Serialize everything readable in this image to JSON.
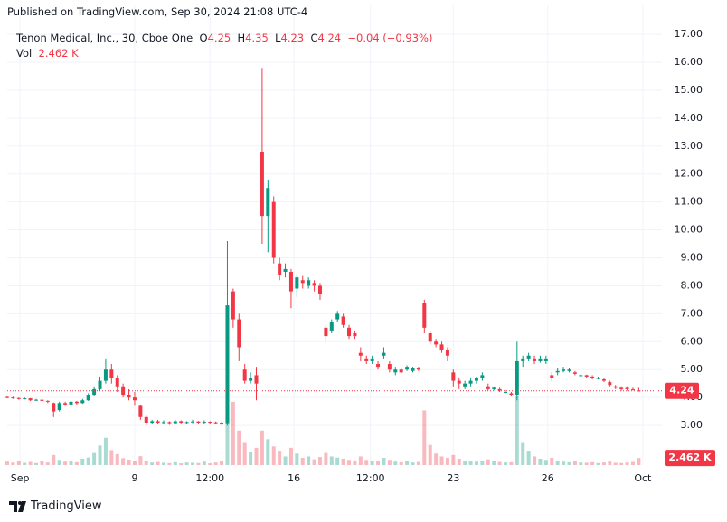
{
  "published": "Published on TradingView.com, Sep 30, 2024 21:08 UTC-4",
  "brand": "TradingView",
  "chart_data": {
    "type": "candlestick",
    "symbol": "Tenon Medical, Inc., 30, Cboe One",
    "legend_letters": [
      "O",
      "H",
      "L",
      "C"
    ],
    "change": {
      "value": -0.04,
      "label": "−0.04"
    },
    "change_pct": {
      "value": -0.93,
      "label": "(−0.93%)"
    },
    "up_color": "#089981",
    "down_color": "#f23645",
    "grid": true,
    "last_price_line": true,
    "xlim": [
      0,
      113
    ],
    "xticks": [
      {
        "value": 2.2,
        "label": "Sep"
      },
      {
        "value": 22,
        "label": "9"
      },
      {
        "value": 35,
        "label": "12:00"
      },
      {
        "value": 49.5,
        "label": "16"
      },
      {
        "value": 62.7,
        "label": "12:00"
      },
      {
        "value": 77,
        "label": "23"
      },
      {
        "value": 93.3,
        "label": "26"
      },
      {
        "value": 109.7,
        "label": "Oct"
      }
    ],
    "ylim": [
      1.58,
      18.07
    ],
    "yticks": [
      {
        "value": 3,
        "label": "3.00"
      },
      {
        "value": 4,
        "label": "4.00"
      },
      {
        "value": 5,
        "label": "5.00"
      },
      {
        "value": 6,
        "label": "6.00"
      },
      {
        "value": 7,
        "label": "7.00"
      },
      {
        "value": 8,
        "label": "8.00"
      },
      {
        "value": 9,
        "label": "9.00"
      },
      {
        "value": 10,
        "label": "10.00"
      },
      {
        "value": 11,
        "label": "11.00"
      },
      {
        "value": 12,
        "label": "12.00"
      },
      {
        "value": 13,
        "label": "13.00"
      },
      {
        "value": 14,
        "label": "14.00"
      },
      {
        "value": 15,
        "label": "15.00"
      },
      {
        "value": 16,
        "label": "16.00"
      },
      {
        "value": 17,
        "label": "17.00"
      }
    ],
    "open": [
      4.02,
      4.0,
      3.98,
      3.95,
      3.97,
      3.9,
      3.92,
      3.88,
      3.8,
      3.55,
      3.8,
      3.75,
      3.85,
      3.8,
      3.9,
      4.1,
      4.3,
      4.6,
      5.0,
      4.7,
      4.4,
      4.1,
      4.0,
      3.7,
      3.3,
      3.1,
      3.15,
      3.1,
      3.12,
      3.08,
      3.15,
      3.1,
      3.12,
      3.14,
      3.1,
      3.13,
      3.11,
      3.1,
      3.08,
      7.8,
      6.8,
      5.0,
      4.6,
      4.8,
      12.8,
      10.5,
      11.0,
      8.8,
      8.5,
      8.5,
      7.9,
      8.2,
      8.0,
      8.1,
      8.0,
      6.5,
      6.4,
      6.8,
      6.9,
      6.5,
      6.3,
      5.6,
      5.4,
      5.3,
      5.2,
      5.5,
      5.2,
      4.9,
      5.0,
      5.0,
      4.95,
      5.05,
      7.4,
      6.3,
      6.0,
      5.9,
      5.7,
      4.9,
      4.6,
      4.4,
      4.5,
      4.6,
      4.7,
      4.4,
      4.3,
      4.3,
      4.2,
      4.15,
      4.1,
      5.3,
      5.4,
      5.4,
      5.3,
      5.3,
      4.8,
      4.9,
      4.95,
      4.95,
      4.9,
      4.8,
      4.8,
      4.75,
      4.7,
      4.65,
      4.55,
      4.4,
      4.35,
      4.35,
      4.3,
      4.25
    ],
    "high": [
      4.05,
      4.03,
      4.0,
      4.0,
      3.98,
      3.95,
      3.93,
      3.9,
      3.82,
      3.85,
      3.85,
      3.9,
      3.88,
      3.95,
      4.15,
      4.4,
      4.75,
      5.4,
      5.2,
      4.8,
      4.5,
      4.3,
      4.2,
      3.75,
      3.35,
      3.2,
      3.2,
      3.18,
      3.15,
      3.2,
      3.18,
      3.15,
      3.2,
      3.16,
      3.18,
      3.15,
      3.14,
      3.12,
      9.6,
      7.9,
      7.0,
      5.2,
      4.9,
      5.1,
      15.8,
      11.8,
      11.2,
      9.0,
      8.8,
      8.6,
      8.4,
      8.35,
      8.3,
      8.2,
      8.1,
      6.6,
      6.8,
      7.1,
      7.0,
      6.6,
      6.4,
      5.8,
      5.5,
      5.5,
      5.3,
      5.8,
      5.3,
      5.1,
      5.05,
      5.15,
      5.1,
      5.1,
      7.5,
      6.4,
      6.1,
      6.0,
      5.8,
      5.0,
      4.7,
      4.6,
      4.7,
      4.75,
      4.9,
      4.5,
      4.4,
      4.35,
      4.25,
      4.2,
      6.0,
      5.5,
      5.6,
      5.5,
      5.5,
      5.5,
      4.9,
      5.05,
      5.1,
      5.05,
      4.95,
      4.85,
      4.82,
      4.8,
      4.75,
      4.7,
      4.6,
      4.45,
      4.4,
      4.4,
      4.35,
      4.35
    ],
    "low": [
      3.97,
      3.95,
      3.92,
      3.93,
      3.87,
      3.88,
      3.85,
      3.8,
      3.3,
      3.5,
      3.7,
      3.72,
      3.75,
      3.78,
      3.88,
      4.05,
      4.25,
      4.5,
      4.5,
      4.2,
      4.0,
      3.9,
      3.7,
      3.2,
      3.0,
      3.05,
      3.05,
      3.05,
      3.02,
      3.05,
      3.05,
      3.06,
      3.08,
      3.05,
      3.07,
      3.06,
      3.05,
      3.02,
      3.0,
      6.5,
      5.3,
      4.5,
      4.5,
      3.9,
      9.5,
      9.2,
      8.8,
      8.2,
      8.3,
      7.2,
      7.6,
      7.9,
      7.9,
      7.8,
      7.5,
      6.0,
      6.3,
      6.7,
      6.5,
      6.1,
      6.1,
      5.3,
      5.2,
      5.2,
      5.0,
      5.4,
      4.9,
      4.8,
      4.85,
      4.95,
      4.9,
      4.95,
      6.3,
      5.9,
      5.8,
      5.6,
      5.3,
      4.4,
      4.3,
      4.3,
      4.4,
      4.5,
      4.6,
      4.25,
      4.25,
      4.2,
      4.15,
      4.05,
      3.9,
      5.1,
      5.3,
      5.2,
      5.25,
      5.2,
      4.6,
      4.8,
      4.9,
      4.9,
      4.8,
      4.75,
      4.7,
      4.65,
      4.65,
      4.55,
      4.4,
      4.3,
      4.25,
      4.25,
      4.25,
      4.23
    ],
    "close": [
      4.0,
      3.98,
      3.95,
      3.97,
      3.9,
      3.92,
      3.88,
      3.85,
      3.5,
      3.8,
      3.75,
      3.85,
      3.8,
      3.9,
      4.1,
      4.3,
      4.6,
      5.0,
      4.7,
      4.4,
      4.1,
      4.0,
      3.9,
      3.3,
      3.1,
      3.15,
      3.1,
      3.12,
      3.08,
      3.15,
      3.1,
      3.12,
      3.14,
      3.1,
      3.13,
      3.11,
      3.1,
      3.08,
      7.3,
      6.8,
      5.8,
      4.6,
      4.7,
      4.5,
      10.5,
      11.5,
      9.0,
      8.4,
      8.6,
      7.8,
      8.3,
      8.1,
      8.2,
      8.0,
      7.7,
      6.2,
      6.7,
      7.0,
      6.6,
      6.2,
      6.2,
      5.5,
      5.3,
      5.4,
      5.1,
      5.6,
      5.0,
      5.0,
      4.9,
      5.1,
      5.05,
      5.0,
      6.5,
      6.0,
      5.9,
      5.7,
      5.5,
      4.6,
      4.5,
      4.5,
      4.6,
      4.7,
      4.8,
      4.3,
      4.35,
      4.25,
      4.2,
      4.1,
      5.3,
      5.4,
      5.5,
      5.3,
      5.4,
      5.4,
      4.7,
      4.95,
      5.0,
      5.0,
      4.85,
      4.8,
      4.75,
      4.7,
      4.7,
      4.6,
      4.45,
      4.35,
      4.3,
      4.3,
      4.28,
      4.24
    ],
    "volume": {
      "name": "Vol",
      "volume_ylim": [
        0,
        160000
      ],
      "value_label": "2.462 K",
      "values": [
        1200,
        900,
        1500,
        800,
        1100,
        700,
        1300,
        900,
        3500,
        1800,
        1200,
        1400,
        1000,
        2200,
        2600,
        4200,
        6800,
        9500,
        5200,
        3800,
        2400,
        1900,
        1500,
        3100,
        1400,
        900,
        1100,
        800,
        700,
        1000,
        600,
        900,
        800,
        700,
        1200,
        600,
        900,
        1300,
        38000,
        22000,
        12000,
        8000,
        4500,
        6000,
        12000,
        9000,
        6500,
        5000,
        3000,
        6000,
        4000,
        2500,
        3000,
        2000,
        2800,
        4200,
        3000,
        2600,
        2200,
        1800,
        1600,
        3000,
        1800,
        1500,
        1400,
        2500,
        1800,
        1200,
        1000,
        1300,
        900,
        1100,
        19000,
        7000,
        4000,
        3000,
        2500,
        3500,
        2200,
        1500,
        1300,
        1200,
        1400,
        2000,
        1300,
        1100,
        900,
        1000,
        24000,
        8000,
        5000,
        3000,
        2200,
        1800,
        2500,
        1500,
        1200,
        1000,
        1300,
        900,
        800,
        1000,
        700,
        900,
        1200,
        800,
        700,
        900,
        1100,
        2462
      ]
    }
  }
}
